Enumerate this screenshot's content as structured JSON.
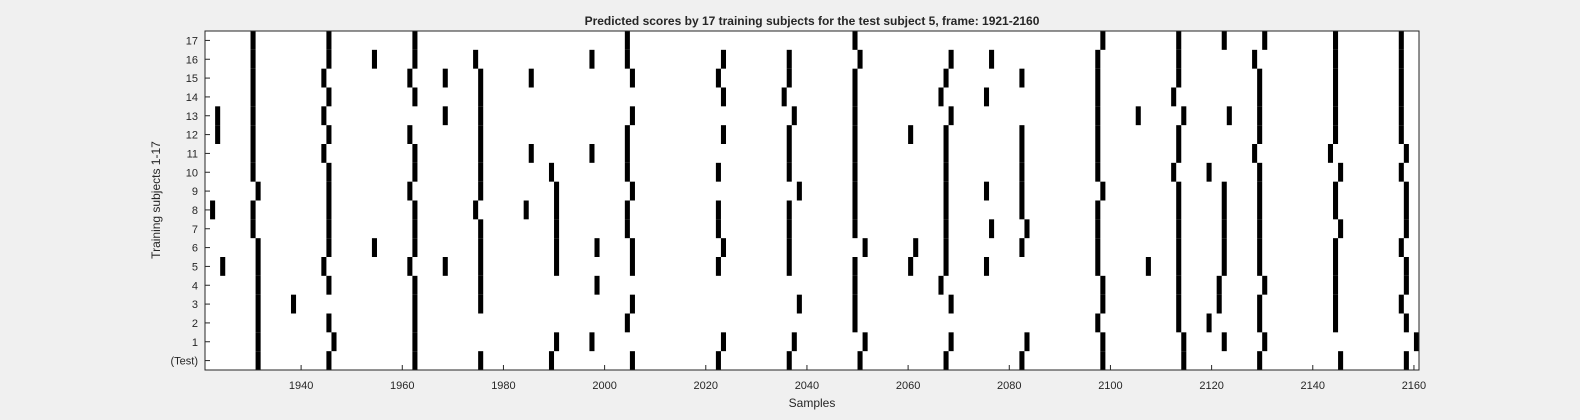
{
  "chart_data": {
    "type": "heatmap",
    "title": "Predicted scores by 17 training subjects for the test subject 5, frame: 1921-2160",
    "xlabel": "Samples",
    "ylabel": "Training subjects 1-17",
    "xlim": [
      1921,
      2160
    ],
    "xticks": [
      1940,
      1960,
      1980,
      2000,
      2020,
      2040,
      2060,
      2080,
      2100,
      2120,
      2140,
      2160
    ],
    "row_labels": [
      "(Test)",
      "1",
      "2",
      "3",
      "4",
      "5",
      "6",
      "7",
      "8",
      "9",
      "10",
      "11",
      "12",
      "13",
      "14",
      "15",
      "16",
      "17"
    ],
    "colors": {
      "mark": "#000000",
      "background": "#ffffff",
      "figure": "#f0f0f0",
      "axis": "#262626"
    },
    "rows": [
      {
        "label": "(Test)",
        "samples": [
          1931,
          1945,
          1962,
          1975,
          1989,
          2005,
          2022,
          2036,
          2050,
          2067,
          2082,
          2098,
          2114,
          2129,
          2145,
          2158
        ]
      },
      {
        "label": "1",
        "samples": [
          1931,
          1946,
          1962,
          1990,
          1997,
          2023,
          2037,
          2051,
          2068,
          2083,
          2098,
          2114,
          2122,
          2130,
          2160
        ]
      },
      {
        "label": "2",
        "samples": [
          1931,
          1945,
          1962,
          2004,
          2049,
          2097,
          2113,
          2119,
          2129,
          2144,
          2158
        ]
      },
      {
        "label": "3",
        "samples": [
          1931,
          1938,
          1962,
          1975,
          2005,
          2038,
          2049,
          2068,
          2098,
          2113,
          2121,
          2129,
          2144,
          2157
        ]
      },
      {
        "label": "4",
        "samples": [
          1931,
          1945,
          1962,
          1975,
          1998,
          2049,
          2066,
          2098,
          2113,
          2121,
          2130,
          2144,
          2158
        ]
      },
      {
        "label": "5",
        "samples": [
          1924,
          1931,
          1944,
          1961,
          1968,
          1975,
          1990,
          2005,
          2022,
          2036,
          2049,
          2060,
          2067,
          2075,
          2097,
          2107,
          2113,
          2122,
          2129,
          2144,
          2158
        ]
      },
      {
        "label": "6",
        "samples": [
          1931,
          1945,
          1954,
          1962,
          1975,
          1990,
          1998,
          2005,
          2023,
          2036,
          2051,
          2061,
          2067,
          2082,
          2097,
          2113,
          2122,
          2129,
          2144,
          2157
        ]
      },
      {
        "label": "7",
        "samples": [
          1930,
          1945,
          1962,
          1975,
          1990,
          2004,
          2022,
          2036,
          2049,
          2067,
          2076,
          2083,
          2097,
          2113,
          2122,
          2129,
          2145,
          2158
        ]
      },
      {
        "label": "8",
        "samples": [
          1922,
          1930,
          1945,
          1962,
          1974,
          1984,
          1990,
          2004,
          2022,
          2036,
          2049,
          2067,
          2082,
          2097,
          2113,
          2122,
          2129,
          2144,
          2158
        ]
      },
      {
        "label": "9",
        "samples": [
          1931,
          1945,
          1961,
          1975,
          1990,
          2005,
          2038,
          2049,
          2067,
          2075,
          2082,
          2098,
          2113,
          2122,
          2129,
          2144,
          2158
        ]
      },
      {
        "label": "10",
        "samples": [
          1930,
          1945,
          1962,
          1975,
          1989,
          2004,
          2022,
          2036,
          2049,
          2067,
          2082,
          2097,
          2112,
          2119,
          2129,
          2145,
          2157
        ]
      },
      {
        "label": "11",
        "samples": [
          1930,
          1944,
          1962,
          1975,
          1985,
          1997,
          2004,
          2036,
          2049,
          2067,
          2082,
          2097,
          2113,
          2128,
          2143,
          2158
        ]
      },
      {
        "label": "12",
        "samples": [
          1923,
          1930,
          1945,
          1961,
          1975,
          2004,
          2023,
          2036,
          2049,
          2060,
          2067,
          2082,
          2097,
          2113,
          2129,
          2144,
          2157
        ]
      },
      {
        "label": "13",
        "samples": [
          1923,
          1930,
          1944,
          1968,
          1975,
          2005,
          2037,
          2049,
          2068,
          2097,
          2105,
          2114,
          2123,
          2129,
          2144,
          2157
        ]
      },
      {
        "label": "14",
        "samples": [
          1930,
          1945,
          1962,
          1975,
          2023,
          2035,
          2049,
          2066,
          2075,
          2097,
          2112,
          2129,
          2144,
          2157
        ]
      },
      {
        "label": "15",
        "samples": [
          1930,
          1944,
          1961,
          1968,
          1975,
          1985,
          2005,
          2022,
          2036,
          2049,
          2067,
          2082,
          2097,
          2113,
          2129,
          2144,
          2157
        ]
      },
      {
        "label": "16",
        "samples": [
          1930,
          1945,
          1954,
          1962,
          1974,
          1997,
          2004,
          2023,
          2036,
          2050,
          2068,
          2076,
          2097,
          2113,
          2128,
          2144,
          2157
        ]
      },
      {
        "label": "17",
        "samples": [
          1930,
          1945,
          1962,
          2004,
          2049,
          2098,
          2113,
          2122,
          2130,
          2144,
          2157
        ]
      }
    ]
  }
}
